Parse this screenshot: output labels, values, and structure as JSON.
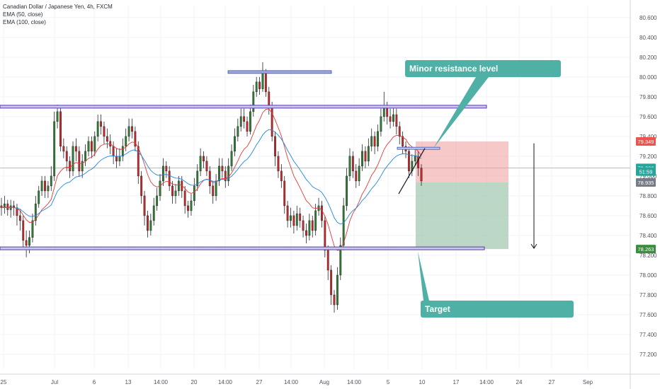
{
  "chart_data": {
    "type": "candlestick",
    "legend": {
      "symbol": "Canadian Dollar / Japanese Yen, 4h, FXCM",
      "indicators": [
        "EMA (50, close)",
        "EMA (100, close)"
      ]
    },
    "y_axis": {
      "ylim": [
        77.05,
        80.72
      ],
      "ticks": [
        "77.200",
        "77.400",
        "77.600",
        "77.800",
        "78.000",
        "78.200",
        "78.400",
        "78.600",
        "78.800",
        "79.000",
        "79.200",
        "79.400",
        "79.600",
        "79.800",
        "80.000",
        "80.200",
        "80.400",
        "80.600"
      ]
    },
    "x_axis": {
      "ticks": [
        "25",
        "Jul",
        "6",
        "13",
        "14:00",
        "20",
        "14:00",
        "27",
        "14:00",
        "Aug",
        "14:00",
        "5",
        "10",
        "17",
        "14:00",
        "24",
        "27",
        "Sep"
      ]
    },
    "price_labels": [
      {
        "value": 79.349,
        "text": "79.349",
        "color": "#ef5350"
      },
      {
        "value": 79.082,
        "text": "79.082",
        "color": "#26a69a"
      },
      {
        "value": 79.045,
        "text": "51:59",
        "color": "#26a69a"
      },
      {
        "value": 78.935,
        "text": "78.935",
        "color": "#787b86"
      },
      {
        "value": 78.263,
        "text": "78.263",
        "color": "#388e3c"
      }
    ],
    "current_price": 79.082,
    "levels": [
      {
        "name": "top-resistance",
        "value": 80.05
      },
      {
        "name": "upper-range",
        "value": 79.7
      },
      {
        "name": "lower-range",
        "value": 78.27
      }
    ],
    "position": {
      "entry": 78.935,
      "stop": 79.349,
      "target": 78.263
    },
    "annotations": [
      {
        "text": "Minor resistance level"
      },
      {
        "text": "Target"
      }
    ],
    "candles": [
      [
        78.7,
        78.68,
        78.78,
        78.6
      ],
      [
        78.68,
        78.72,
        78.8,
        78.62
      ],
      [
        78.72,
        78.66,
        78.76,
        78.6
      ],
      [
        78.66,
        78.7,
        78.76,
        78.58
      ],
      [
        78.7,
        78.68,
        78.75,
        78.6
      ],
      [
        78.68,
        78.6,
        78.72,
        78.5
      ],
      [
        78.6,
        78.55,
        78.66,
        78.45
      ],
      [
        78.55,
        78.35,
        78.6,
        78.28
      ],
      [
        78.35,
        78.3,
        78.45,
        78.18
      ],
      [
        78.3,
        78.38,
        78.45,
        78.22
      ],
      [
        78.38,
        78.55,
        78.62,
        78.33
      ],
      [
        78.55,
        78.72,
        78.8,
        78.5
      ],
      [
        78.72,
        78.85,
        78.9,
        78.68
      ],
      [
        78.85,
        78.95,
        79.0,
        78.8
      ],
      [
        78.95,
        78.85,
        79.0,
        78.78
      ],
      [
        78.85,
        78.9,
        78.95,
        78.78
      ],
      [
        78.9,
        79.0,
        79.1,
        78.85
      ],
      [
        79.0,
        79.55,
        79.65,
        78.95
      ],
      [
        79.55,
        79.65,
        79.72,
        79.48
      ],
      [
        79.65,
        79.3,
        79.7,
        79.25
      ],
      [
        79.3,
        79.25,
        79.38,
        79.18
      ],
      [
        79.25,
        79.15,
        79.3,
        79.05
      ],
      [
        79.15,
        79.05,
        79.2,
        78.98
      ],
      [
        79.05,
        79.3,
        79.35,
        79.0
      ],
      [
        79.3,
        79.25,
        79.38,
        79.15
      ],
      [
        79.25,
        79.05,
        79.3,
        79.0
      ],
      [
        79.05,
        79.15,
        79.22,
        78.98
      ],
      [
        79.15,
        79.25,
        79.32,
        79.1
      ],
      [
        79.25,
        79.35,
        79.4,
        79.2
      ],
      [
        79.35,
        79.25,
        79.4,
        79.18
      ],
      [
        79.25,
        79.4,
        79.45,
        79.2
      ],
      [
        79.4,
        79.55,
        79.62,
        79.35
      ],
      [
        79.55,
        79.5,
        79.62,
        79.42
      ],
      [
        79.5,
        79.4,
        79.55,
        79.32
      ],
      [
        79.4,
        79.35,
        79.48,
        79.28
      ],
      [
        79.35,
        79.3,
        79.42,
        79.22
      ],
      [
        79.3,
        79.2,
        79.35,
        79.12
      ],
      [
        79.2,
        79.15,
        79.28,
        79.08
      ],
      [
        79.15,
        79.2,
        79.28,
        79.1
      ],
      [
        79.2,
        79.3,
        79.38,
        79.15
      ],
      [
        79.3,
        79.4,
        79.48,
        79.25
      ],
      [
        79.4,
        79.5,
        79.58,
        79.35
      ],
      [
        79.5,
        79.45,
        79.58,
        79.38
      ],
      [
        79.45,
        79.3,
        79.5,
        79.25
      ],
      [
        79.3,
        79.0,
        79.35,
        78.92
      ],
      [
        79.0,
        78.8,
        79.05,
        78.72
      ],
      [
        78.8,
        78.6,
        78.85,
        78.5
      ],
      [
        78.6,
        78.45,
        78.65,
        78.38
      ],
      [
        78.45,
        78.55,
        78.62,
        78.4
      ],
      [
        78.55,
        78.7,
        78.78,
        78.5
      ],
      [
        78.7,
        78.8,
        78.88,
        78.65
      ],
      [
        78.8,
        78.95,
        79.02,
        78.75
      ],
      [
        78.95,
        79.1,
        79.18,
        78.9
      ],
      [
        79.1,
        79.05,
        79.15,
        78.98
      ],
      [
        79.05,
        78.9,
        79.1,
        78.85
      ],
      [
        78.9,
        78.8,
        78.95,
        78.72
      ],
      [
        78.8,
        78.85,
        78.92,
        78.72
      ],
      [
        78.85,
        78.95,
        79.0,
        78.8
      ],
      [
        78.95,
        78.85,
        79.0,
        78.78
      ],
      [
        78.85,
        78.7,
        78.9,
        78.62
      ],
      [
        78.7,
        78.65,
        78.75,
        78.58
      ],
      [
        78.65,
        78.75,
        78.82,
        78.6
      ],
      [
        78.75,
        78.9,
        78.98,
        78.7
      ],
      [
        78.9,
        79.05,
        79.12,
        78.85
      ],
      [
        79.05,
        79.2,
        79.28,
        79.0
      ],
      [
        79.2,
        79.15,
        79.25,
        79.08
      ],
      [
        79.15,
        79.05,
        79.2,
        79.0
      ],
      [
        79.05,
        78.9,
        79.1,
        78.82
      ],
      [
        78.9,
        78.8,
        78.95,
        78.72
      ],
      [
        78.8,
        78.95,
        79.02,
        78.75
      ],
      [
        78.95,
        79.1,
        79.18,
        78.9
      ],
      [
        79.1,
        79.05,
        79.18,
        78.98
      ],
      [
        79.05,
        78.95,
        79.1,
        78.88
      ],
      [
        78.95,
        79.1,
        79.18,
        78.9
      ],
      [
        79.1,
        79.25,
        79.32,
        79.05
      ],
      [
        79.25,
        79.4,
        79.48,
        79.2
      ],
      [
        79.4,
        79.5,
        79.58,
        79.35
      ],
      [
        79.5,
        79.6,
        79.68,
        79.45
      ],
      [
        79.6,
        79.55,
        79.68,
        79.48
      ],
      [
        79.55,
        79.45,
        79.6,
        79.4
      ],
      [
        79.45,
        79.65,
        79.72,
        79.42
      ],
      [
        79.65,
        79.85,
        79.92,
        79.6
      ],
      [
        79.85,
        79.95,
        80.0,
        79.8
      ],
      [
        79.95,
        79.88,
        80.0,
        79.82
      ],
      [
        79.88,
        80.05,
        80.15,
        79.85
      ],
      [
        80.05,
        79.85,
        80.08,
        79.8
      ],
      [
        79.85,
        79.7,
        79.9,
        79.62
      ],
      [
        79.7,
        79.4,
        79.75,
        79.35
      ],
      [
        79.4,
        79.2,
        79.45,
        79.1
      ],
      [
        79.2,
        79.05,
        79.25,
        78.98
      ],
      [
        79.05,
        78.95,
        79.12,
        78.88
      ],
      [
        78.95,
        78.7,
        79.0,
        78.62
      ],
      [
        78.7,
        78.55,
        78.75,
        78.48
      ],
      [
        78.55,
        78.6,
        78.68,
        78.48
      ],
      [
        78.6,
        78.5,
        78.65,
        78.42
      ],
      [
        78.5,
        78.62,
        78.7,
        78.45
      ],
      [
        78.62,
        78.55,
        78.68,
        78.48
      ],
      [
        78.55,
        78.45,
        78.6,
        78.38
      ],
      [
        78.45,
        78.4,
        78.52,
        78.32
      ],
      [
        78.4,
        78.55,
        78.62,
        78.35
      ],
      [
        78.55,
        78.45,
        78.6,
        78.38
      ],
      [
        78.45,
        78.65,
        78.72,
        78.4
      ],
      [
        78.65,
        78.7,
        78.78,
        78.6
      ],
      [
        78.7,
        78.55,
        78.75,
        78.48
      ],
      [
        78.55,
        78.25,
        78.6,
        78.18
      ],
      [
        78.25,
        78.05,
        78.3,
        77.95
      ],
      [
        78.05,
        77.8,
        78.1,
        77.7
      ],
      [
        77.8,
        77.7,
        77.85,
        77.62
      ],
      [
        77.7,
        78.0,
        78.08,
        77.65
      ],
      [
        78.0,
        78.3,
        78.38,
        77.95
      ],
      [
        78.3,
        78.7,
        78.78,
        78.25
      ],
      [
        78.7,
        79.0,
        79.08,
        78.65
      ],
      [
        79.0,
        79.2,
        79.28,
        78.95
      ],
      [
        79.2,
        79.05,
        79.25,
        78.98
      ],
      [
        79.05,
        78.95,
        79.12,
        78.88
      ],
      [
        78.95,
        79.1,
        79.18,
        78.9
      ],
      [
        79.1,
        79.25,
        79.32,
        79.05
      ],
      [
        79.25,
        79.15,
        79.3,
        79.08
      ],
      [
        79.15,
        79.3,
        79.38,
        79.1
      ],
      [
        79.3,
        79.4,
        79.48,
        79.25
      ],
      [
        79.4,
        79.3,
        79.45,
        79.22
      ],
      [
        79.3,
        79.45,
        79.52,
        79.25
      ],
      [
        79.45,
        79.6,
        79.68,
        79.4
      ],
      [
        79.6,
        79.7,
        79.85,
        79.55
      ],
      [
        79.7,
        79.6,
        79.75,
        79.52
      ],
      [
        79.6,
        79.55,
        79.68,
        79.48
      ],
      [
        79.55,
        79.62,
        79.7,
        79.5
      ],
      [
        79.62,
        79.5,
        79.68,
        79.42
      ],
      [
        79.5,
        79.4,
        79.55,
        79.32
      ],
      [
        79.4,
        79.3,
        79.45,
        79.22
      ],
      [
        79.3,
        79.25,
        79.35,
        79.18
      ],
      [
        79.25,
        79.05,
        79.3,
        78.98
      ],
      [
        79.05,
        79.15,
        79.22,
        79.0
      ],
      [
        79.15,
        79.2,
        79.28,
        79.1
      ],
      [
        79.2,
        79.08,
        79.25,
        79.0
      ],
      [
        79.08,
        78.95,
        79.12,
        78.9
      ]
    ]
  }
}
